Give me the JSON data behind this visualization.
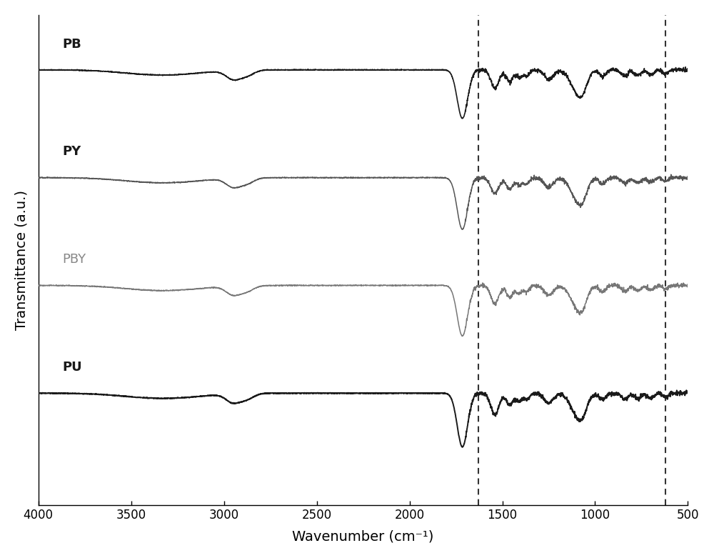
{
  "title": "",
  "xlabel": "Wavenumber (cm⁻¹)",
  "ylabel": "Transmittance (a.u.)",
  "xmin": 500,
  "xmax": 4000,
  "vline1": 1630,
  "vline2": 620,
  "labels": [
    "PB",
    "PY",
    "PBY",
    "PU"
  ],
  "label_colors": [
    "#1a1a1a",
    "#1a1a1a",
    "#888888",
    "#1a1a1a"
  ],
  "label_bold": [
    true,
    true,
    false,
    true
  ],
  "offsets": [
    3.0,
    2.0,
    1.0,
    0.0
  ],
  "line_colors": [
    "#1a1a1a",
    "#555555",
    "#777777",
    "#1a1a1a"
  ],
  "linewidths": [
    1.2,
    1.1,
    1.1,
    1.4
  ],
  "background_color": "#ffffff",
  "label_fontsize": 13,
  "tick_fontsize": 12,
  "axis_label_fontsize": 14
}
